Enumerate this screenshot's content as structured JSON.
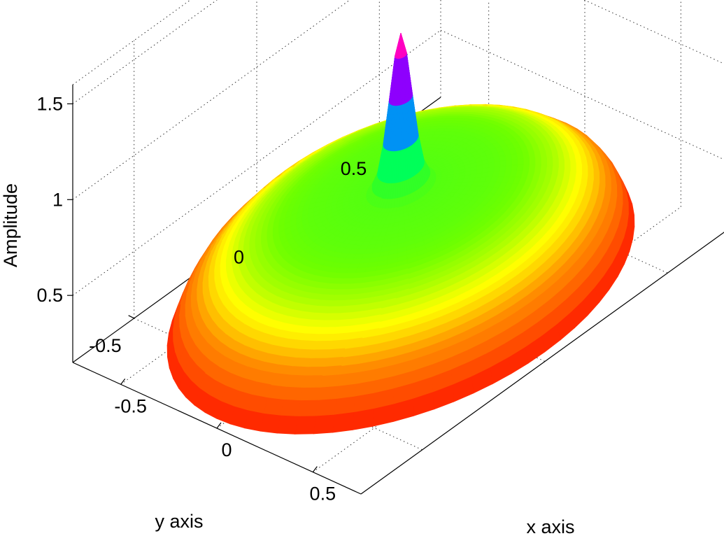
{
  "chart_data": {
    "type": "surface3d",
    "title": "",
    "xlabel": "x axis",
    "ylabel": "y axis",
    "zlabel": "Amplitude",
    "xlim": [
      -0.75,
      0.75
    ],
    "ylim": [
      -0.75,
      0.75
    ],
    "zlim": [
      0.15,
      1.6
    ],
    "x_ticks": [
      -0.5,
      0,
      0.5
    ],
    "y_ticks": [
      -0.5,
      0,
      0.5
    ],
    "z_ticks": [
      0.5,
      1,
      1.5
    ],
    "x_tick_labels": [
      "-0.5",
      "0",
      "0.5"
    ],
    "y_tick_labels": [
      "-0.5",
      "0",
      "0.5"
    ],
    "z_tick_labels": [
      "0.5",
      "1",
      "1.5"
    ],
    "grid": true,
    "colormap": "hsv",
    "surface": {
      "domain_radius": 0.75,
      "radial_profile": [
        {
          "r": 0.0,
          "z": 1.52
        },
        {
          "r": 0.02,
          "z": 1.4
        },
        {
          "r": 0.04,
          "z": 1.15
        },
        {
          "r": 0.06,
          "z": 0.92
        },
        {
          "r": 0.08,
          "z": 0.78
        },
        {
          "r": 0.11,
          "z": 0.72
        },
        {
          "r": 0.2,
          "z": 0.71
        },
        {
          "r": 0.3,
          "z": 0.7
        },
        {
          "r": 0.4,
          "z": 0.67
        },
        {
          "r": 0.5,
          "z": 0.62
        },
        {
          "r": 0.6,
          "z": 0.53
        },
        {
          "r": 0.68,
          "z": 0.42
        },
        {
          "r": 0.72,
          "z": 0.32
        },
        {
          "r": 0.75,
          "z": 0.2
        }
      ]
    }
  }
}
